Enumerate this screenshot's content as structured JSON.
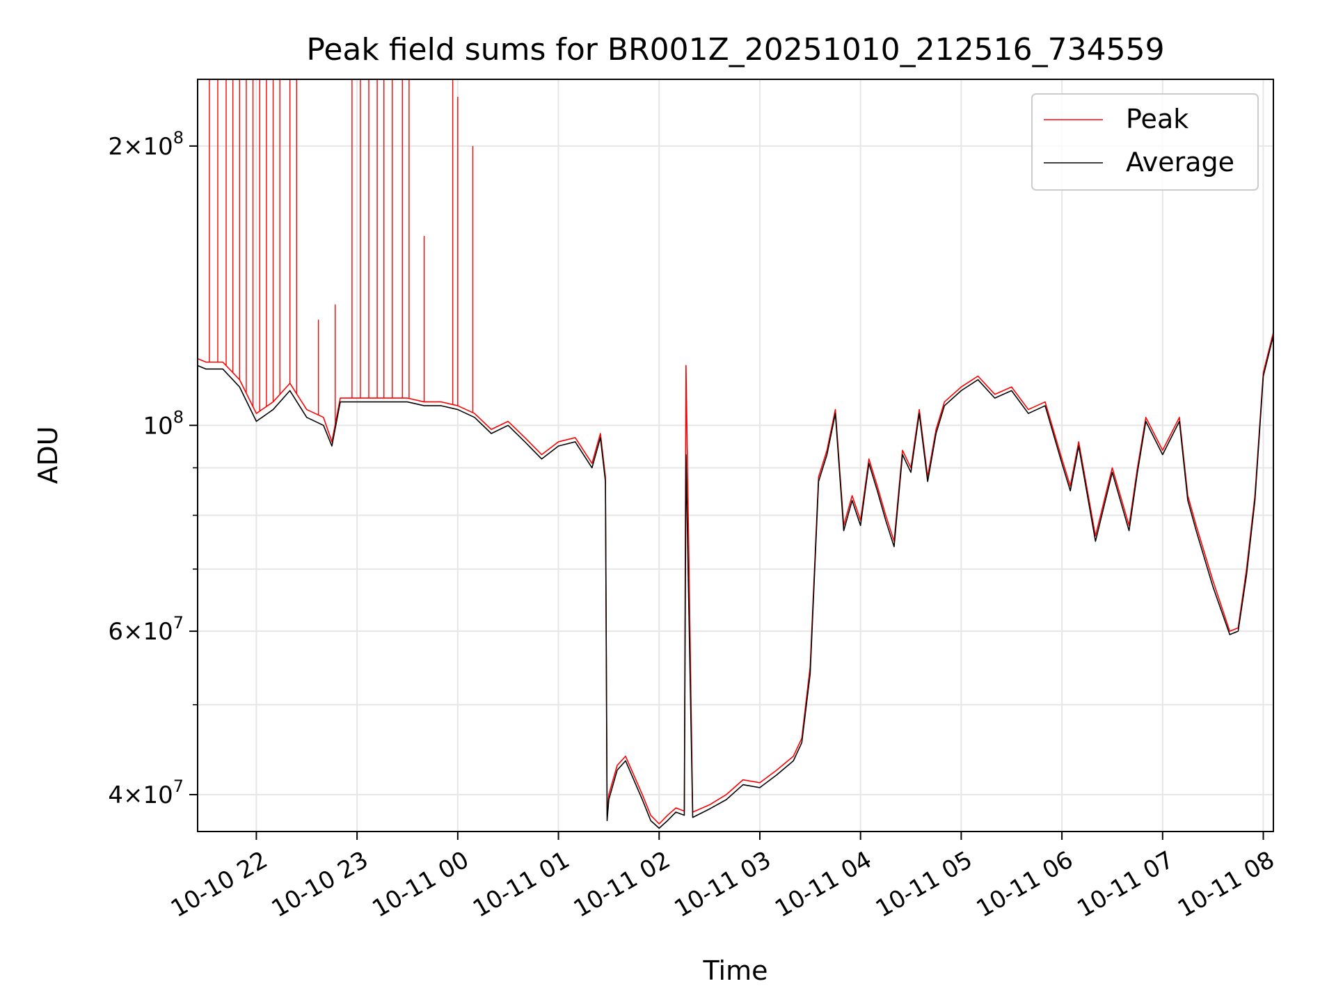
{
  "chart_data": {
    "type": "line",
    "title": "Peak field sums for BR001Z_20251010_212516_734559",
    "xlabel": "Time",
    "ylabel": "ADU",
    "yscale": "log",
    "ylim": [
      36500000,
      236000000
    ],
    "xlim": [
      "2025-10-10 21:25",
      "2025-10-11 08:06"
    ],
    "grid": true,
    "legend_position": "top-right",
    "x_ticks": [
      "10-10 22",
      "10-10 23",
      "10-11 00",
      "10-11 01",
      "10-11 02",
      "10-11 03",
      "10-11 04",
      "10-11 05",
      "10-11 06",
      "10-11 07",
      "10-11 08"
    ],
    "y_ticks_major": [
      {
        "value": 40000000,
        "mantissa": "4",
        "exponent": "7"
      },
      {
        "value": 60000000,
        "mantissa": "6",
        "exponent": "7"
      },
      {
        "value": 100000000,
        "mantissa": "",
        "exponent": "8"
      },
      {
        "value": 200000000,
        "mantissa": "2",
        "exponent": "8"
      }
    ],
    "y_ticks_minor": [
      50000000,
      70000000,
      80000000,
      90000000,
      300000000
    ],
    "x": [
      "2025-10-10 21:25",
      "2025-10-10 21:30",
      "2025-10-10 21:40",
      "2025-10-10 21:50",
      "2025-10-10 22:00",
      "2025-10-10 22:10",
      "2025-10-10 22:20",
      "2025-10-10 22:30",
      "2025-10-10 22:40",
      "2025-10-10 22:45",
      "2025-10-10 22:50",
      "2025-10-10 23:00",
      "2025-10-10 23:10",
      "2025-10-10 23:20",
      "2025-10-10 23:30",
      "2025-10-10 23:40",
      "2025-10-10 23:50",
      "2025-10-11 00:00",
      "2025-10-11 00:10",
      "2025-10-11 00:20",
      "2025-10-11 00:30",
      "2025-10-11 00:40",
      "2025-10-11 00:50",
      "2025-10-11 01:00",
      "2025-10-11 01:10",
      "2025-10-11 01:20",
      "2025-10-11 01:25",
      "2025-10-11 01:28",
      "2025-10-11 01:29",
      "2025-10-11 01:30",
      "2025-10-11 01:35",
      "2025-10-11 01:40",
      "2025-10-11 01:50",
      "2025-10-11 01:55",
      "2025-10-11 02:00",
      "2025-10-11 02:05",
      "2025-10-11 02:10",
      "2025-10-11 02:15",
      "2025-10-11 02:16",
      "2025-10-11 02:20",
      "2025-10-11 02:30",
      "2025-10-11 02:40",
      "2025-10-11 02:50",
      "2025-10-11 03:00",
      "2025-10-11 03:10",
      "2025-10-11 03:20",
      "2025-10-11 03:25",
      "2025-10-11 03:30",
      "2025-10-11 03:35",
      "2025-10-11 03:40",
      "2025-10-11 03:45",
      "2025-10-11 03:50",
      "2025-10-11 03:55",
      "2025-10-11 04:00",
      "2025-10-11 04:05",
      "2025-10-11 04:10",
      "2025-10-11 04:15",
      "2025-10-11 04:20",
      "2025-10-11 04:25",
      "2025-10-11 04:30",
      "2025-10-11 04:35",
      "2025-10-11 04:40",
      "2025-10-11 04:45",
      "2025-10-11 04:50",
      "2025-10-11 05:00",
      "2025-10-11 05:10",
      "2025-10-11 05:20",
      "2025-10-11 05:30",
      "2025-10-11 05:40",
      "2025-10-11 05:50",
      "2025-10-11 06:00",
      "2025-10-11 06:05",
      "2025-10-11 06:10",
      "2025-10-11 06:20",
      "2025-10-11 06:30",
      "2025-10-11 06:40",
      "2025-10-11 06:45",
      "2025-10-11 06:50",
      "2025-10-11 07:00",
      "2025-10-11 07:10",
      "2025-10-11 07:15",
      "2025-10-11 07:20",
      "2025-10-11 07:30",
      "2025-10-11 07:40",
      "2025-10-11 07:45",
      "2025-10-11 07:50",
      "2025-10-11 07:55",
      "2025-10-11 08:00",
      "2025-10-11 08:06"
    ],
    "series": [
      {
        "name": "Peak",
        "color": "#ff0000",
        "values": [
          118000000,
          117000000,
          117000000,
          112000000,
          103000000,
          106000000,
          111000000,
          104000000,
          102000000,
          96000000,
          107000000,
          107000000,
          107000000,
          107000000,
          107000000,
          106000000,
          106000000,
          105000000,
          103000000,
          99000000,
          101000000,
          97000000,
          93000000,
          96000000,
          97000000,
          91000000,
          98000000,
          88000000,
          38000000,
          40000000,
          43000000,
          44000000,
          40000000,
          38000000,
          37200000,
          38000000,
          38700000,
          38400000,
          116000000,
          38300000,
          39000000,
          40000000,
          41500000,
          41200000,
          42500000,
          44000000,
          46000000,
          55000000,
          88000000,
          94000000,
          104000000,
          78000000,
          84000000,
          79000000,
          92000000,
          86000000,
          80000000,
          75000000,
          94000000,
          90000000,
          104000000,
          88000000,
          99000000,
          106000000,
          110000000,
          113000000,
          108000000,
          110000000,
          104000000,
          106000000,
          92000000,
          86000000,
          96000000,
          76000000,
          90000000,
          78000000,
          90000000,
          102000000,
          94000000,
          102000000,
          84000000,
          78000000,
          68000000,
          60000000,
          60500000,
          70000000,
          84000000,
          114000000,
          126000000
        ],
        "spikes": [
          {
            "x": "2025-10-10 21:32",
            "value": 236000000
          },
          {
            "x": "2025-10-10 21:37",
            "value": 236000000
          },
          {
            "x": "2025-10-10 21:42",
            "value": 236000000
          },
          {
            "x": "2025-10-10 21:46",
            "value": 236000000
          },
          {
            "x": "2025-10-10 21:50",
            "value": 236000000
          },
          {
            "x": "2025-10-10 21:54",
            "value": 236000000
          },
          {
            "x": "2025-10-10 21:58",
            "value": 236000000
          },
          {
            "x": "2025-10-10 22:02",
            "value": 236000000
          },
          {
            "x": "2025-10-10 22:06",
            "value": 236000000
          },
          {
            "x": "2025-10-10 22:10",
            "value": 236000000
          },
          {
            "x": "2025-10-10 22:14",
            "value": 236000000
          },
          {
            "x": "2025-10-10 22:20",
            "value": 236000000
          },
          {
            "x": "2025-10-10 22:24",
            "value": 236000000
          },
          {
            "x": "2025-10-10 22:37",
            "value": 130000000
          },
          {
            "x": "2025-10-10 22:47",
            "value": 135000000
          },
          {
            "x": "2025-10-10 22:57",
            "value": 236000000
          },
          {
            "x": "2025-10-10 23:02",
            "value": 236000000
          },
          {
            "x": "2025-10-10 23:07",
            "value": 236000000
          },
          {
            "x": "2025-10-10 23:12",
            "value": 236000000
          },
          {
            "x": "2025-10-10 23:16",
            "value": 236000000
          },
          {
            "x": "2025-10-10 23:21",
            "value": 236000000
          },
          {
            "x": "2025-10-10 23:27",
            "value": 236000000
          },
          {
            "x": "2025-10-10 23:31",
            "value": 236000000
          },
          {
            "x": "2025-10-10 23:40",
            "value": 160000000
          },
          {
            "x": "2025-10-10 23:57",
            "value": 236000000
          },
          {
            "x": "2025-10-11 00:00",
            "value": 226000000
          },
          {
            "x": "2025-10-11 00:09",
            "value": 200000000
          }
        ]
      },
      {
        "name": "Average",
        "color": "#000000",
        "values": [
          116000000,
          115000000,
          115000000,
          110000000,
          101000000,
          104000000,
          109000000,
          102000000,
          100000000,
          95000000,
          106000000,
          106000000,
          106000000,
          106000000,
          106000000,
          105000000,
          105000000,
          104000000,
          102000000,
          98000000,
          100000000,
          96000000,
          92000000,
          95000000,
          96000000,
          90000000,
          97000000,
          87000000,
          37500000,
          39500000,
          42500000,
          43500000,
          39500000,
          37500000,
          36800000,
          37500000,
          38300000,
          38000000,
          93000000,
          37800000,
          38600000,
          39500000,
          41000000,
          40700000,
          42000000,
          43500000,
          45500000,
          54000000,
          87000000,
          93000000,
          103000000,
          77000000,
          83000000,
          78000000,
          91000000,
          85000000,
          79000000,
          74000000,
          93000000,
          89000000,
          103000000,
          87000000,
          98000000,
          105000000,
          109000000,
          112000000,
          107000000,
          109000000,
          103000000,
          105000000,
          91000000,
          85000000,
          95000000,
          75000000,
          89000000,
          77000000,
          89000000,
          101000000,
          93000000,
          101000000,
          83000000,
          77000000,
          67000000,
          59500000,
          60000000,
          69000000,
          83000000,
          113000000,
          125000000
        ]
      }
    ],
    "legend": [
      {
        "label": "Peak",
        "color": "#ff0000"
      },
      {
        "label": "Average",
        "color": "#000000"
      }
    ]
  }
}
